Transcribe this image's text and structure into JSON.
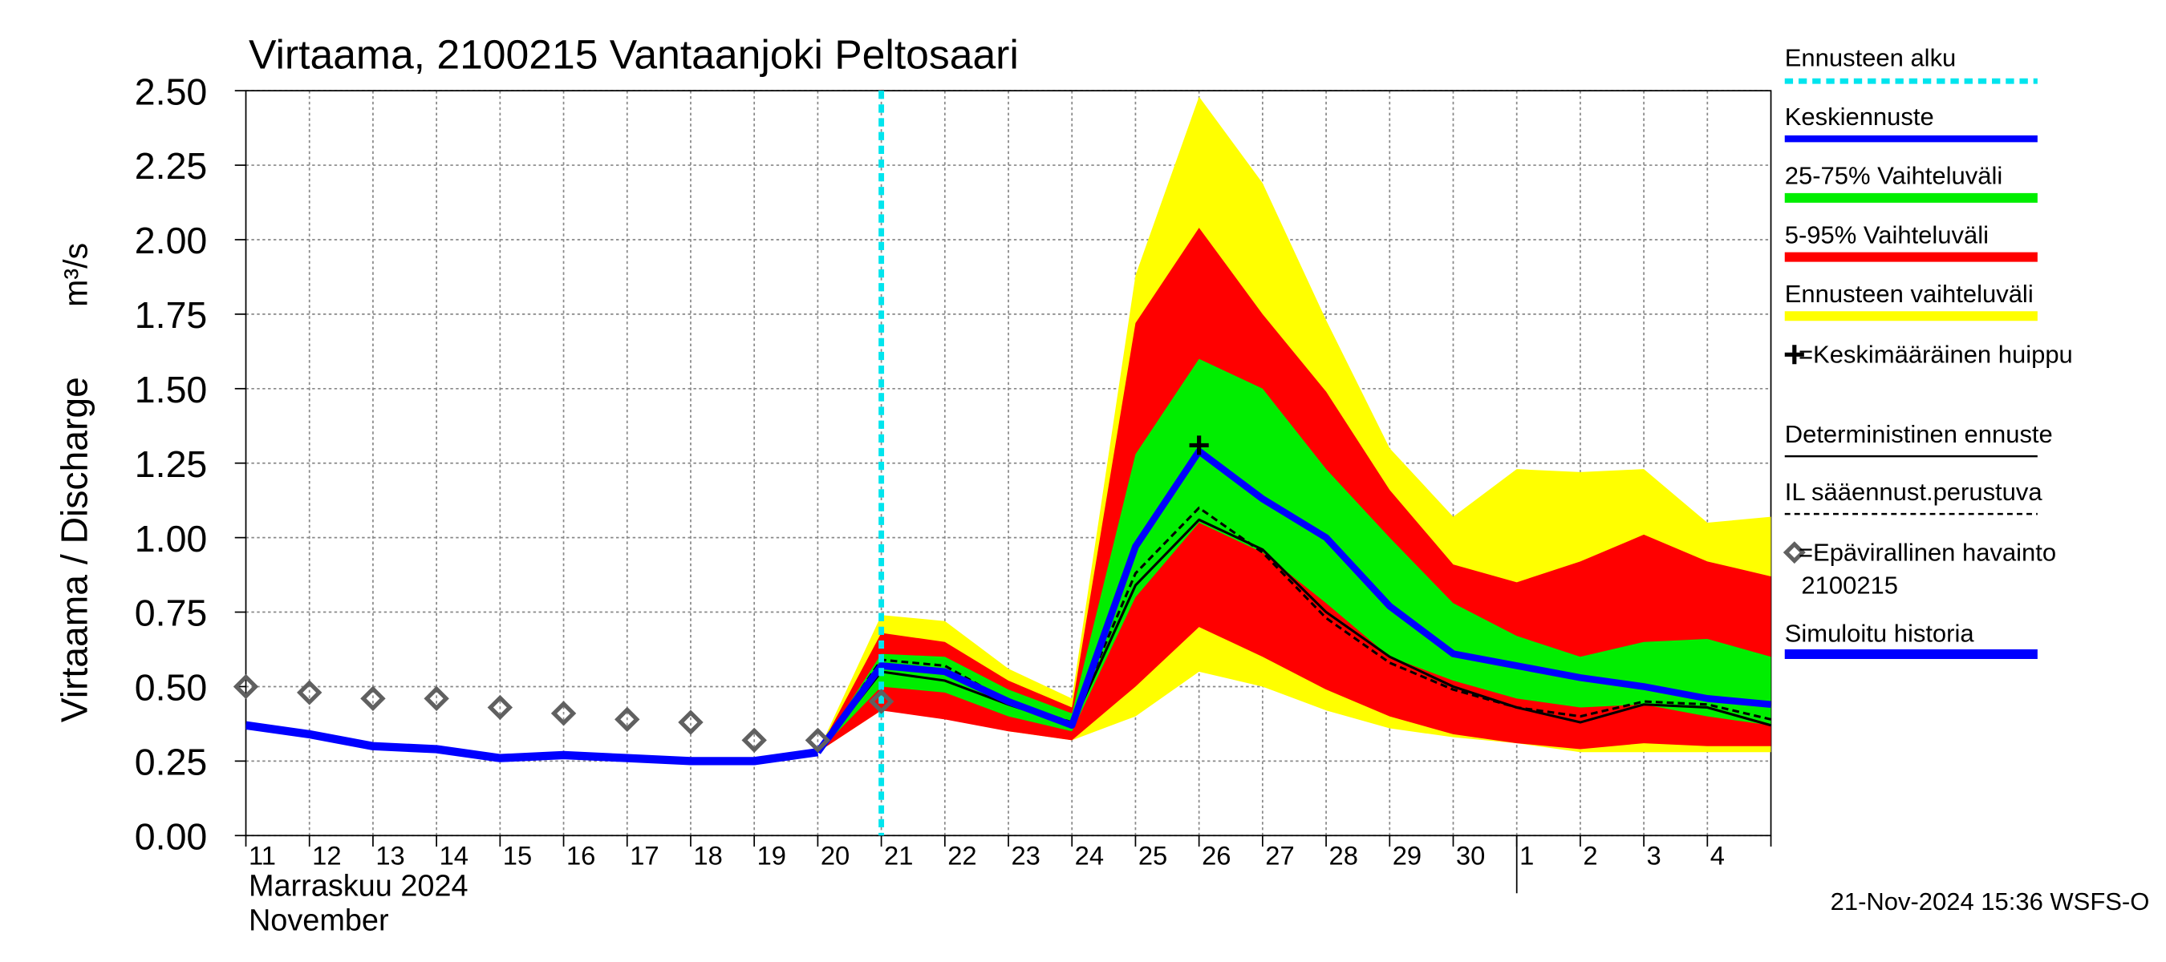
{
  "chart_data": {
    "type": "line",
    "title": "Virtaama, 2100215 Vantaanjoki Peltosaari",
    "y_label": "Virtaama / Discharge",
    "y_unit": "m³/s",
    "x_label_lines": [
      "Marraskuu 2024",
      "November"
    ],
    "footer": "21-Nov-2024 15:36 WSFS-O",
    "categories": [
      "11",
      "12",
      "13",
      "14",
      "15",
      "16",
      "17",
      "18",
      "19",
      "20",
      "21",
      "22",
      "23",
      "24",
      "25",
      "26",
      "27",
      "28",
      "29",
      "30",
      "1",
      "2",
      "3",
      "4",
      null
    ],
    "ylim": [
      0,
      2.5
    ],
    "yticks": [
      {
        "value": 0,
        "label": "0.00"
      },
      {
        "value": 0.25,
        "label": "0.25"
      },
      {
        "value": 0.5,
        "label": "0.50"
      },
      {
        "value": 0.75,
        "label": "0.75"
      },
      {
        "value": 1,
        "label": "1.00"
      },
      {
        "value": 1.25,
        "label": "1.25"
      },
      {
        "value": 1.5,
        "label": "1.50"
      },
      {
        "value": 1.75,
        "label": "1.75"
      },
      {
        "value": 2,
        "label": "2.00"
      },
      {
        "value": 2.25,
        "label": "2.25"
      },
      {
        "value": 2.5,
        "label": "2.50"
      }
    ],
    "grid": true,
    "forecast_start": {
      "name": "Ennusteen alku",
      "index": 10,
      "color": "#00e5ee"
    },
    "bands": [
      {
        "name": "Ennusteen vaihteluväli",
        "color": "#ffff00",
        "high": [
          null,
          null,
          null,
          null,
          null,
          null,
          null,
          null,
          null,
          0.28,
          0.74,
          0.72,
          0.56,
          0.46,
          1.88,
          2.48,
          2.19,
          1.73,
          1.3,
          1.07,
          1.23,
          1.22,
          1.23,
          1.05,
          1.07
        ],
        "low": [
          null,
          null,
          null,
          null,
          null,
          null,
          null,
          null,
          null,
          0.28,
          0.42,
          0.4,
          0.35,
          0.32,
          0.4,
          0.55,
          0.5,
          0.42,
          0.36,
          0.33,
          0.31,
          0.28,
          0.28,
          0.28,
          0.28
        ]
      },
      {
        "name": "5-95% Vaihteluväli",
        "color": "#ff0000",
        "high": [
          null,
          null,
          null,
          null,
          null,
          null,
          null,
          null,
          null,
          0.28,
          0.68,
          0.65,
          0.52,
          0.43,
          1.72,
          2.04,
          1.75,
          1.49,
          1.16,
          0.91,
          0.85,
          0.92,
          1.01,
          0.92,
          0.87
        ],
        "low": [
          null,
          null,
          null,
          null,
          null,
          null,
          null,
          null,
          null,
          0.28,
          0.42,
          0.39,
          0.35,
          0.32,
          0.5,
          0.7,
          0.6,
          0.49,
          0.4,
          0.34,
          0.31,
          0.29,
          0.31,
          0.3,
          0.3
        ]
      },
      {
        "name": "25-75% Vaihteluväli",
        "color": "#00ee00",
        "high": [
          null,
          null,
          null,
          null,
          null,
          null,
          null,
          null,
          null,
          0.28,
          0.61,
          0.6,
          0.49,
          0.41,
          1.28,
          1.6,
          1.5,
          1.23,
          1.0,
          0.78,
          0.67,
          0.6,
          0.65,
          0.66,
          0.6
        ],
        "low": [
          null,
          null,
          null,
          null,
          null,
          null,
          null,
          null,
          null,
          0.28,
          0.5,
          0.48,
          0.4,
          0.35,
          0.8,
          1.05,
          0.95,
          0.78,
          0.6,
          0.52,
          0.46,
          0.43,
          0.44,
          0.4,
          0.37
        ]
      }
    ],
    "series": [
      {
        "name": "Deterministinen ennuste",
        "color": "#000000",
        "width": 1.8,
        "dashed": false,
        "values": [
          null,
          null,
          null,
          null,
          null,
          null,
          null,
          null,
          null,
          0.28,
          0.55,
          0.52,
          0.44,
          0.37,
          0.84,
          1.06,
          0.96,
          0.75,
          0.6,
          0.5,
          0.43,
          0.38,
          0.44,
          0.43,
          0.37
        ]
      },
      {
        "name": "IL sääennust.perustuva",
        "color": "#000000",
        "width": 1.8,
        "dashed": true,
        "values": [
          null,
          null,
          null,
          null,
          null,
          null,
          null,
          null,
          null,
          0.28,
          0.59,
          0.57,
          0.45,
          0.38,
          0.88,
          1.1,
          0.95,
          0.73,
          0.58,
          0.49,
          0.43,
          0.4,
          0.45,
          0.44,
          0.39
        ]
      },
      {
        "name": "Simuloitu historia",
        "color": "#0000ff",
        "width": 6,
        "dashed": false,
        "values": [
          0.37,
          0.34,
          0.3,
          0.29,
          0.26,
          0.27,
          0.26,
          0.25,
          0.25,
          0.28,
          null,
          null,
          null,
          null,
          null,
          null,
          null,
          null,
          null,
          null,
          null,
          null,
          null,
          null,
          null
        ]
      },
      {
        "name": "Keskiennuste",
        "color": "#0000ff",
        "width": 5,
        "dashed": false,
        "values": [
          null,
          null,
          null,
          null,
          null,
          null,
          null,
          null,
          null,
          0.28,
          0.57,
          0.55,
          0.45,
          0.37,
          0.97,
          1.29,
          1.13,
          1.0,
          0.77,
          0.61,
          0.57,
          0.53,
          0.5,
          0.46,
          0.44
        ]
      }
    ],
    "observations": {
      "name": [
        "=Epävirallinen havainto",
        "2100215"
      ],
      "color": "#606060",
      "values": [
        0.5,
        0.48,
        0.46,
        0.46,
        0.43,
        0.41,
        0.39,
        0.38,
        0.32,
        0.32,
        0.45,
        null,
        null,
        null,
        null,
        null,
        null,
        null,
        null,
        null,
        null,
        null,
        null,
        null,
        null
      ]
    },
    "peak": {
      "name": "=Keskimääräinen huippu",
      "index": 15,
      "value": 1.31,
      "color": "#000000"
    }
  }
}
